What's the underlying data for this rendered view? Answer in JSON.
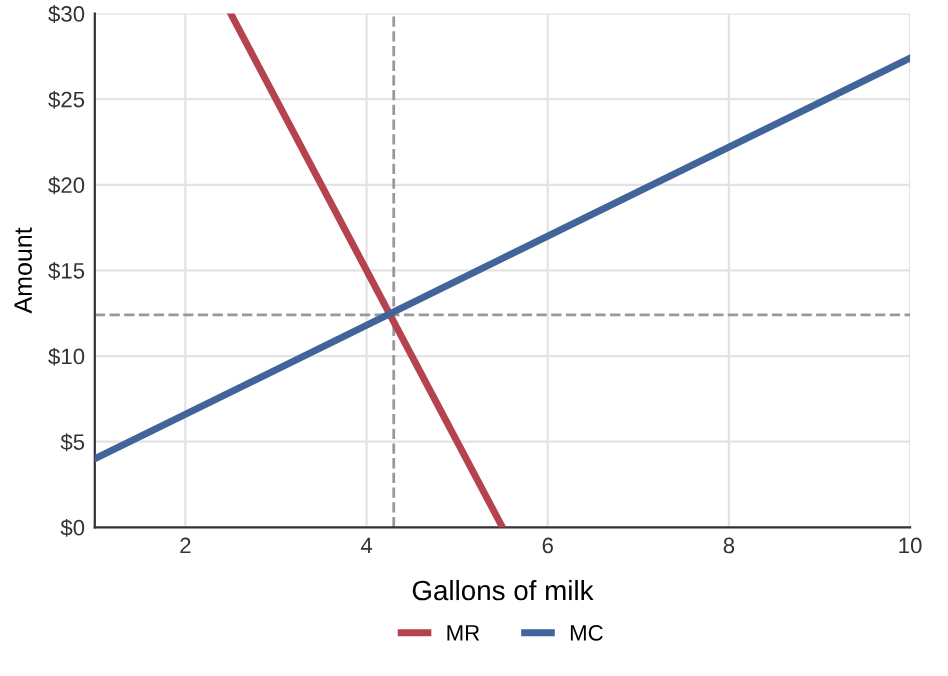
{
  "chart_data": {
    "type": "line",
    "xlabel": "Gallons of milk",
    "ylabel": "Amount",
    "series": [
      {
        "name": "MR",
        "color": "#b5434f",
        "x": [
          2.5,
          5.5
        ],
        "values": [
          30,
          0
        ]
      },
      {
        "name": "MC",
        "color": "#41659a",
        "x": [
          1,
          10
        ],
        "values": [
          4,
          27.4
        ]
      }
    ],
    "xlim": [
      1,
      10
    ],
    "xticks": [
      2,
      4,
      6,
      8,
      10
    ],
    "ylim": [
      0,
      30
    ],
    "yticks": [
      {
        "value": 0,
        "label": "$0"
      },
      {
        "value": 5,
        "label": "$5"
      },
      {
        "value": 10,
        "label": "$10"
      },
      {
        "value": 15,
        "label": "$15"
      },
      {
        "value": 20,
        "label": "$20"
      },
      {
        "value": 25,
        "label": "$25"
      },
      {
        "value": 30,
        "label": "$30"
      }
    ],
    "ref_lines": [
      {
        "axis": "x",
        "value": 4.3,
        "color": "#999999",
        "line_style": "dashed"
      },
      {
        "axis": "y",
        "value": 12.4,
        "color": "#999999",
        "line_style": "dashed"
      }
    ],
    "grid": true,
    "legend": "bottom",
    "line_style": "solid",
    "marker": "none"
  }
}
